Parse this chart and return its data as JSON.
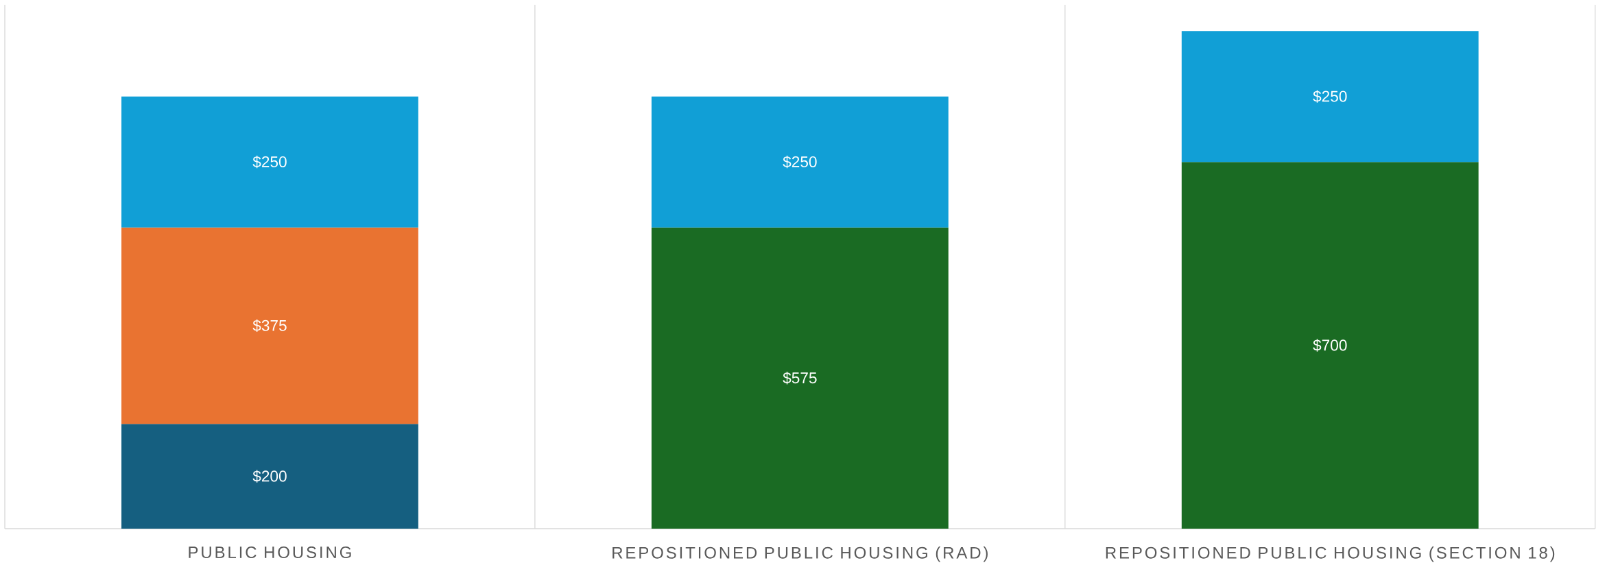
{
  "chart_data": {
    "type": "bar",
    "stacked": true,
    "categories": [
      "PUBLIC HOUSING",
      "REPOSITIONED PUBLIC HOUSING (RAD)",
      "REPOSITIONED PUBLIC HOUSING (SECTION 18)"
    ],
    "series": [
      {
        "color": "#155f80",
        "values": [
          200,
          null,
          null
        ],
        "value_labels": [
          "$200",
          null,
          null
        ]
      },
      {
        "color": "#e97331",
        "values": [
          375,
          null,
          null
        ],
        "value_labels": [
          "$375",
          null,
          null
        ]
      },
      {
        "color": "#1a6b23",
        "values": [
          null,
          575,
          700
        ],
        "value_labels": [
          null,
          "$575",
          "$700"
        ]
      },
      {
        "color": "#119fd6",
        "values": [
          250,
          250,
          250
        ],
        "value_labels": [
          "$250",
          "$250",
          "$250"
        ]
      }
    ],
    "ylim": [
      0,
      1000
    ],
    "grid": "x"
  }
}
